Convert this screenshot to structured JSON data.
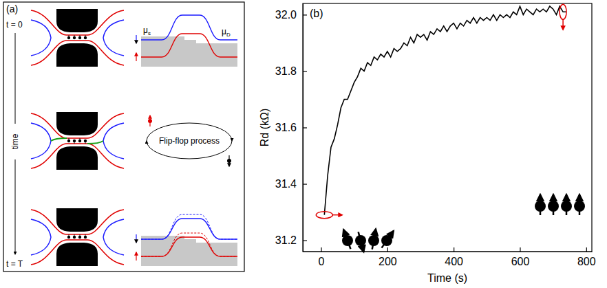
{
  "chart_data": {
    "type": "line",
    "title": "(b)",
    "xlabel": "Time (s)",
    "ylabel": "Rd (kΩ)",
    "color": "#000000",
    "x": [
      10,
      20,
      30,
      40,
      50,
      60,
      70,
      80,
      90,
      100,
      110,
      120,
      130,
      140,
      150,
      160,
      170,
      180,
      190,
      200,
      210,
      220,
      230,
      240,
      250,
      260,
      270,
      280,
      290,
      300,
      310,
      320,
      330,
      340,
      350,
      360,
      370,
      380,
      390,
      400,
      410,
      420,
      430,
      440,
      450,
      460,
      470,
      480,
      490,
      500,
      510,
      520,
      530,
      540,
      550,
      560,
      570,
      580,
      590,
      600,
      610,
      620,
      630,
      640,
      650,
      660,
      670,
      680,
      690,
      700,
      710,
      720,
      730,
      740
    ],
    "values": [
      31.29,
      31.43,
      31.53,
      31.56,
      31.61,
      31.67,
      31.7,
      31.7,
      31.73,
      31.76,
      31.78,
      31.81,
      31.8,
      31.83,
      31.82,
      31.85,
      31.84,
      31.86,
      31.85,
      31.87,
      31.85,
      31.88,
      31.87,
      31.88,
      31.9,
      31.89,
      31.92,
      31.9,
      31.93,
      31.92,
      31.93,
      31.91,
      31.94,
      31.93,
      31.95,
      31.94,
      31.96,
      31.94,
      31.96,
      31.97,
      31.95,
      31.97,
      31.96,
      31.98,
      31.97,
      31.99,
      31.97,
      31.99,
      31.98,
      31.99,
      31.98,
      32.0,
      31.98,
      32.0,
      31.99,
      32.0,
      31.99,
      32.01,
      32.0,
      32.03,
      32.0,
      32.02,
      32.01,
      32.0,
      32.02,
      32.01,
      32.02,
      32.01,
      32.03,
      32.02,
      32.0,
      32.03,
      32.01,
      32.01
    ],
    "xlim": [
      -55,
      817
    ],
    "ylim": [
      31.16,
      32.04
    ],
    "xticks": [
      0,
      200,
      400,
      600,
      800
    ],
    "yticks": [
      31.2,
      31.4,
      31.6,
      31.8,
      {
        "value": 32,
        "label": "32.0"
      }
    ],
    "grid": false
  },
  "diagram": {
    "panel_label": "(a)",
    "time_start": "t = 0",
    "time_axis": "time",
    "time_end": "t = T",
    "cycle_label": "Flip-flop process",
    "potential_source": "μs",
    "potential_drain": "μD"
  }
}
